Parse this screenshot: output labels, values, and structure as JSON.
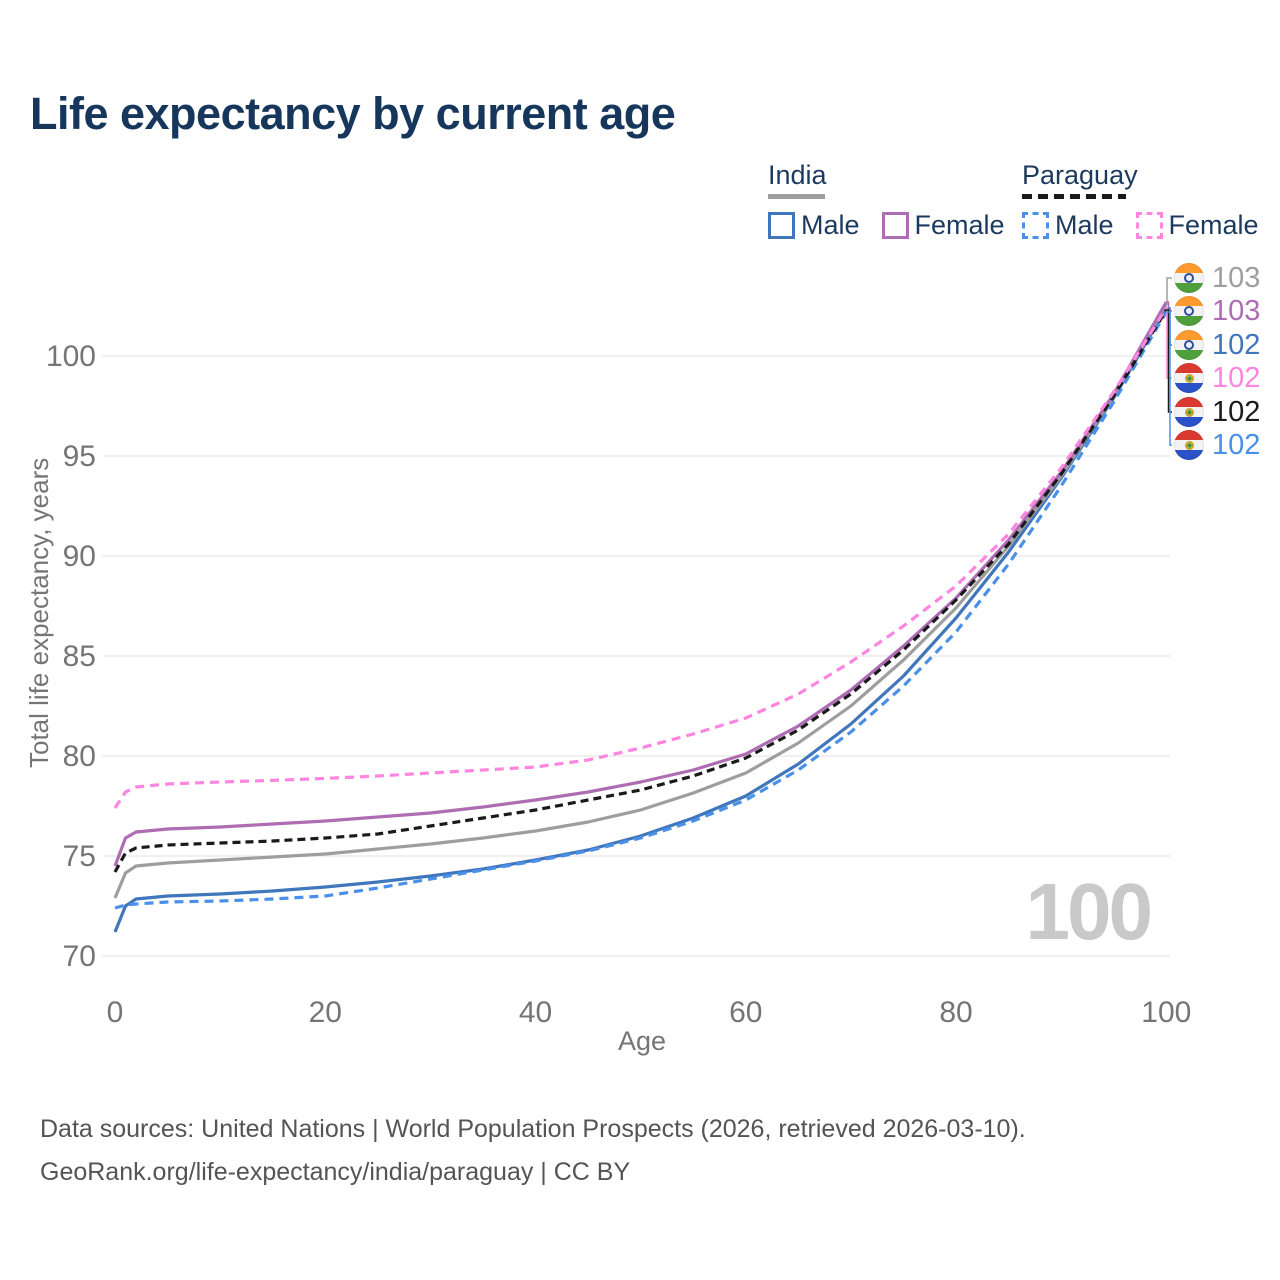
{
  "title": "Life expectancy by current age",
  "watermark_current_age": "100",
  "legend": {
    "groups": [
      {
        "country": "India",
        "line_style": "solid",
        "line_color": "#9E9E9E",
        "items": [
          {
            "label": "Male",
            "series": "india_male",
            "color": "#4076BB"
          },
          {
            "label": "Female",
            "series": "india_female",
            "color": "#AE6DB3"
          }
        ]
      },
      {
        "country": "Paraguay",
        "line_style": "dashed",
        "line_color": "#1A1A1A",
        "items": [
          {
            "label": "Male",
            "series": "paraguay_male",
            "color": "#4A90E8"
          },
          {
            "label": "Female",
            "series": "paraguay_female",
            "color": "#FF85E0"
          }
        ]
      }
    ]
  },
  "footer": {
    "line1": "Data sources: United Nations | World Population Prospects (2026, retrieved 2026-03-10).",
    "line2": "GeoRank.org/life-expectancy/india/paraguay | CC BY"
  },
  "chart_data": {
    "type": "line",
    "title": "Life expectancy by current age",
    "xlabel": "Age",
    "ylabel": "Total life expectancy, years",
    "x_range": [
      0,
      100
    ],
    "y_range": [
      70,
      103
    ],
    "xticks": [
      0,
      20,
      40,
      60,
      80,
      100
    ],
    "yticks": [
      70,
      75,
      80,
      85,
      90,
      95,
      100
    ],
    "grid": "horizontal",
    "legend_position": "top-right",
    "current_age_indicator": 100,
    "x": [
      0,
      1,
      2,
      5,
      10,
      15,
      20,
      25,
      30,
      35,
      40,
      45,
      50,
      55,
      60,
      65,
      70,
      75,
      80,
      85,
      90,
      95,
      100
    ],
    "series": [
      {
        "name": "India Male",
        "key": "india_male",
        "country": "India",
        "sex": "Male",
        "color": "#4076BB",
        "dash": null,
        "values": [
          71.2,
          72.5,
          72.85,
          73.0,
          73.1,
          73.25,
          73.45,
          73.7,
          74.0,
          74.35,
          74.8,
          75.3,
          76.0,
          76.9,
          78.0,
          79.6,
          81.6,
          84.0,
          86.9,
          90.2,
          93.9,
          97.9,
          102.4
        ]
      },
      {
        "name": "India Both sexes",
        "key": "india_total",
        "country": "India",
        "sex": "Both",
        "color": "#9E9E9E",
        "dash": null,
        "values": [
          72.9,
          74.15,
          74.5,
          74.65,
          74.8,
          74.95,
          75.1,
          75.35,
          75.6,
          75.9,
          76.25,
          76.7,
          77.3,
          78.15,
          79.15,
          80.65,
          82.5,
          84.8,
          87.4,
          90.5,
          94.0,
          98.0,
          102.6
        ]
      },
      {
        "name": "India Female",
        "key": "india_female",
        "country": "India",
        "sex": "Female",
        "color": "#AE6DB3",
        "dash": null,
        "values": [
          74.5,
          75.9,
          76.2,
          76.35,
          76.45,
          76.6,
          76.75,
          76.95,
          77.15,
          77.45,
          77.8,
          78.2,
          78.7,
          79.3,
          80.1,
          81.5,
          83.3,
          85.5,
          87.9,
          90.8,
          94.2,
          98.1,
          102.7
        ]
      },
      {
        "name": "Paraguay Male",
        "key": "paraguay_male",
        "country": "Paraguay",
        "sex": "Male",
        "color": "#4A90E8",
        "dash": "9 6",
        "values": [
          72.4,
          72.55,
          72.6,
          72.7,
          72.75,
          72.85,
          73.0,
          73.4,
          73.85,
          74.3,
          74.75,
          75.25,
          75.9,
          76.75,
          77.8,
          79.3,
          81.2,
          83.5,
          86.2,
          89.6,
          93.5,
          97.7,
          102.2
        ]
      },
      {
        "name": "Paraguay Both sexes",
        "key": "paraguay_total",
        "country": "Paraguay",
        "sex": "Both",
        "color": "#1A1A1A",
        "dash": "8 5",
        "values": [
          74.2,
          75.15,
          75.4,
          75.55,
          75.65,
          75.75,
          75.9,
          76.1,
          76.5,
          76.9,
          77.3,
          77.8,
          78.3,
          79.0,
          79.9,
          81.3,
          83.1,
          85.3,
          87.8,
          90.6,
          94.1,
          98.0,
          102.3
        ]
      },
      {
        "name": "Paraguay Female",
        "key": "paraguay_female",
        "country": "Paraguay",
        "sex": "Female",
        "color": "#FF85E0",
        "dash": "9 6",
        "values": [
          77.4,
          78.2,
          78.45,
          78.6,
          78.7,
          78.78,
          78.88,
          79.0,
          79.15,
          79.3,
          79.45,
          79.8,
          80.4,
          81.1,
          81.9,
          83.1,
          84.7,
          86.5,
          88.5,
          91.1,
          94.4,
          98.2,
          102.4
        ]
      }
    ],
    "end_labels": [
      {
        "value": "103",
        "series": "india_total",
        "flag": "india",
        "color": "#9E9E9E"
      },
      {
        "value": "103",
        "series": "india_female",
        "flag": "india",
        "color": "#AE6DB3"
      },
      {
        "value": "102",
        "series": "india_male",
        "flag": "india",
        "color": "#4076BB"
      },
      {
        "value": "102",
        "series": "paraguay_female",
        "flag": "paraguay",
        "color": "#FF85E0"
      },
      {
        "value": "102",
        "series": "paraguay_total",
        "flag": "paraguay",
        "color": "#1A1A1A"
      },
      {
        "value": "102",
        "series": "paraguay_male",
        "flag": "paraguay",
        "color": "#4A90E8"
      }
    ],
    "colors": {
      "title_text": "#16365C",
      "legend_text": "#1C3A5E",
      "tick_text": "#757575",
      "gridline": "#EBEBEB",
      "watermark": "#C9C9C9",
      "footer_text": "#545454"
    }
  }
}
